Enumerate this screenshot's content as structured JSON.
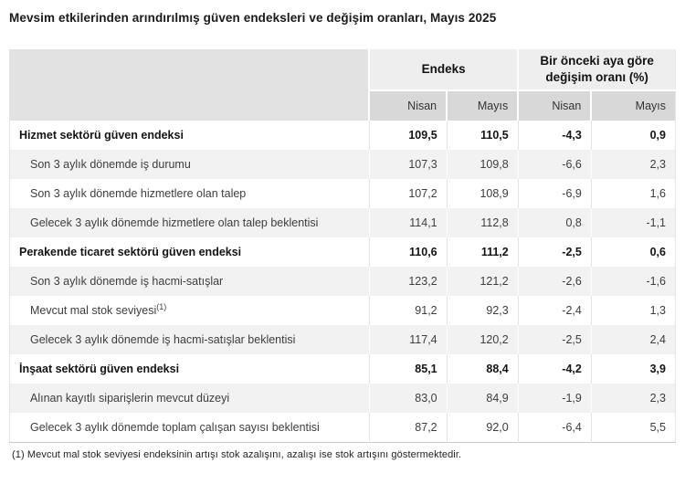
{
  "title": "Mevsim etkilerinden arındırılmış güven endeksleri ve değişim oranları, Mayıs 2025",
  "table": {
    "groups": [
      {
        "label": "Endeks"
      },
      {
        "label": "Bir önceki aya göre değişim oranı (%)"
      }
    ],
    "sub_headers": [
      "Nisan",
      "Mayıs",
      "Nisan",
      "Mayıs"
    ],
    "rows": [
      {
        "label": "Hizmet sektörü güven endeksi",
        "bold": true,
        "values": [
          "109,5",
          "110,5",
          "-4,3",
          "0,9"
        ]
      },
      {
        "label": "Son 3 aylık dönemde iş durumu",
        "bold": false,
        "values": [
          "107,3",
          "109,8",
          "-6,6",
          "2,3"
        ]
      },
      {
        "label": "Son 3 aylık dönemde hizmetlere olan talep",
        "bold": false,
        "values": [
          "107,2",
          "108,9",
          "-6,9",
          "1,6"
        ]
      },
      {
        "label": "Gelecek 3 aylık dönemde hizmetlere olan talep beklentisi",
        "bold": false,
        "values": [
          "114,1",
          "112,8",
          "0,8",
          "-1,1"
        ]
      },
      {
        "label": "Perakende ticaret sektörü güven endeksi",
        "bold": true,
        "values": [
          "110,6",
          "111,2",
          "-2,5",
          "0,6"
        ]
      },
      {
        "label": "Son 3 aylık dönemde iş hacmi-satışlar",
        "bold": false,
        "values": [
          "123,2",
          "121,2",
          "-2,6",
          "-1,6"
        ]
      },
      {
        "label": "Mevcut mal stok seviyesi",
        "sup": "(1)",
        "bold": false,
        "values": [
          "91,2",
          "92,3",
          "-2,4",
          "1,3"
        ]
      },
      {
        "label": "Gelecek 3 aylık dönemde iş hacmi-satışlar beklentisi",
        "bold": false,
        "values": [
          "117,4",
          "120,2",
          "-2,5",
          "2,4"
        ]
      },
      {
        "label": "İnşaat sektörü güven endeksi",
        "bold": true,
        "values": [
          "85,1",
          "88,4",
          "-4,2",
          "3,9"
        ]
      },
      {
        "label": "Alınan kayıtlı siparişlerin mevcut düzeyi",
        "bold": false,
        "values": [
          "83,0",
          "84,9",
          "-1,9",
          "2,3"
        ]
      },
      {
        "label": "Gelecek 3 aylık dönemde toplam çalışan sayısı beklentisi",
        "bold": false,
        "values": [
          "87,2",
          "92,0",
          "-6,4",
          "5,5"
        ]
      }
    ]
  },
  "footnote": "(1) Mevcut mal stok seviyesi endeksinin artışı stok azalışını, azalışı ise stok artışını göstermektedir.",
  "colors": {
    "header_corner_bg": "#e2e2e2",
    "group_header_bg": "#eeeeee",
    "sub_header_bg": "#d8d8d8",
    "stripe_row_bg": "#f2f2f2",
    "table_bottom_border": "#c9c9c9",
    "text_primary": "#1a1a1a",
    "text_secondary": "#3d3d3d"
  }
}
